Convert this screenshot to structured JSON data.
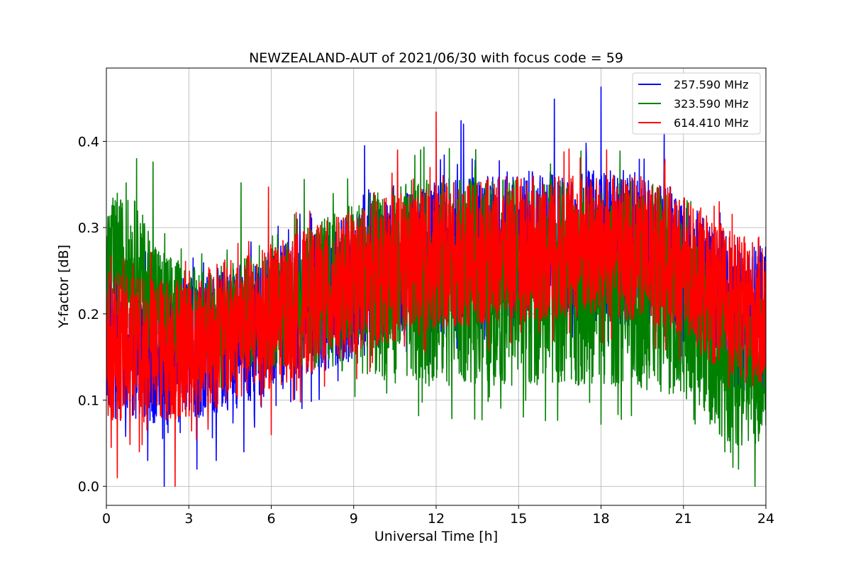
{
  "chart_data": {
    "type": "line",
    "title": "NEWZEALAND-AUT of 2021/06/30 with focus code = 59",
    "xlabel": "Universal Time [h]",
    "ylabel": "Y-factor [dB]",
    "xlim": [
      0,
      24
    ],
    "ylim": [
      -0.022,
      0.485
    ],
    "xticks": [
      0,
      3,
      6,
      9,
      12,
      15,
      18,
      21,
      24
    ],
    "yticks": [
      0.0,
      0.1,
      0.2,
      0.3,
      0.4
    ],
    "xtick_labels": [
      "0",
      "3",
      "6",
      "9",
      "12",
      "15",
      "18",
      "21",
      "24"
    ],
    "ytick_labels": [
      "0.0",
      "0.1",
      "0.2",
      "0.3",
      "0.4"
    ],
    "grid": true,
    "legend_position": "top-right",
    "series": [
      {
        "name": "257.590 MHz",
        "color": "#0000ff",
        "envelope": {
          "x": [
            0,
            1,
            2,
            3,
            4,
            5,
            6,
            7,
            8,
            9,
            10,
            11,
            12,
            13,
            14,
            15,
            16,
            17,
            18,
            19,
            20,
            21,
            22,
            23,
            24
          ],
          "mean": [
            0.165,
            0.16,
            0.155,
            0.16,
            0.168,
            0.178,
            0.19,
            0.203,
            0.218,
            0.232,
            0.245,
            0.256,
            0.264,
            0.27,
            0.274,
            0.276,
            0.277,
            0.278,
            0.278,
            0.276,
            0.27,
            0.25,
            0.22,
            0.2,
            0.19
          ],
          "halfwidth": [
            0.09,
            0.085,
            0.085,
            0.085,
            0.085,
            0.085,
            0.085,
            0.085,
            0.085,
            0.085,
            0.085,
            0.085,
            0.09,
            0.09,
            0.09,
            0.09,
            0.088,
            0.088,
            0.09,
            0.09,
            0.088,
            0.088,
            0.085,
            0.09,
            0.09
          ]
        },
        "peaks": [
          [
            16.3,
            0.449
          ],
          [
            18.0,
            0.463
          ],
          [
            12.9,
            0.424
          ],
          [
            13.0,
            0.42
          ],
          [
            9.4,
            0.395
          ],
          [
            20.3,
            0.41
          ]
        ],
        "troughs": [
          [
            2.1,
            0.0
          ],
          [
            3.3,
            0.02
          ],
          [
            1.5,
            0.03
          ],
          [
            4.0,
            0.03
          ],
          [
            5.0,
            0.04
          ]
        ]
      },
      {
        "name": "323.590 MHz",
        "color": "#008000",
        "envelope": {
          "x": [
            0,
            1,
            2,
            3,
            4,
            5,
            6,
            7,
            8,
            9,
            10,
            11,
            12,
            13,
            14,
            15,
            16,
            17,
            18,
            19,
            20,
            21,
            22,
            23,
            24
          ],
          "mean": [
            0.26,
            0.255,
            0.21,
            0.195,
            0.195,
            0.2,
            0.205,
            0.215,
            0.225,
            0.232,
            0.234,
            0.235,
            0.236,
            0.237,
            0.237,
            0.237,
            0.237,
            0.237,
            0.236,
            0.234,
            0.23,
            0.21,
            0.16,
            0.13,
            0.14
          ],
          "halfwidth": [
            0.075,
            0.08,
            0.065,
            0.06,
            0.06,
            0.065,
            0.07,
            0.08,
            0.09,
            0.1,
            0.11,
            0.12,
            0.12,
            0.12,
            0.12,
            0.12,
            0.12,
            0.12,
            0.12,
            0.12,
            0.12,
            0.11,
            0.09,
            0.09,
            0.09
          ]
        },
        "peaks": [
          [
            1.1,
            0.38
          ],
          [
            1.7,
            0.376
          ],
          [
            7.2,
            0.356
          ],
          [
            4.9,
            0.352
          ],
          [
            0.4,
            0.34
          ]
        ],
        "troughs": [
          [
            23.6,
            0.0
          ],
          [
            23.0,
            0.02
          ],
          [
            18.0,
            0.072
          ],
          [
            22.5,
            0.04
          ]
        ]
      },
      {
        "name": "614.410 MHz",
        "color": "#ff0000",
        "envelope": {
          "x": [
            0,
            1,
            2,
            3,
            4,
            5,
            6,
            7,
            8,
            9,
            10,
            11,
            12,
            13,
            14,
            15,
            16,
            17,
            18,
            19,
            20,
            21,
            22,
            23,
            24
          ],
          "mean": [
            0.165,
            0.16,
            0.158,
            0.165,
            0.175,
            0.185,
            0.196,
            0.21,
            0.224,
            0.237,
            0.249,
            0.258,
            0.265,
            0.27,
            0.273,
            0.275,
            0.276,
            0.277,
            0.277,
            0.276,
            0.272,
            0.255,
            0.228,
            0.205,
            0.2
          ],
          "halfwidth": [
            0.09,
            0.085,
            0.085,
            0.085,
            0.085,
            0.085,
            0.085,
            0.085,
            0.085,
            0.085,
            0.085,
            0.085,
            0.085,
            0.085,
            0.085,
            0.085,
            0.085,
            0.085,
            0.085,
            0.085,
            0.085,
            0.085,
            0.085,
            0.085,
            0.09
          ]
        },
        "peaks": [
          [
            12.0,
            0.434
          ],
          [
            10.6,
            0.39
          ],
          [
            5.9,
            0.347
          ],
          [
            22.3,
            0.33
          ],
          [
            18.2,
            0.39
          ]
        ],
        "troughs": [
          [
            0.4,
            0.01
          ],
          [
            2.5,
            0.0
          ],
          [
            1.2,
            0.04
          ],
          [
            6.0,
            0.06
          ]
        ]
      }
    ]
  }
}
